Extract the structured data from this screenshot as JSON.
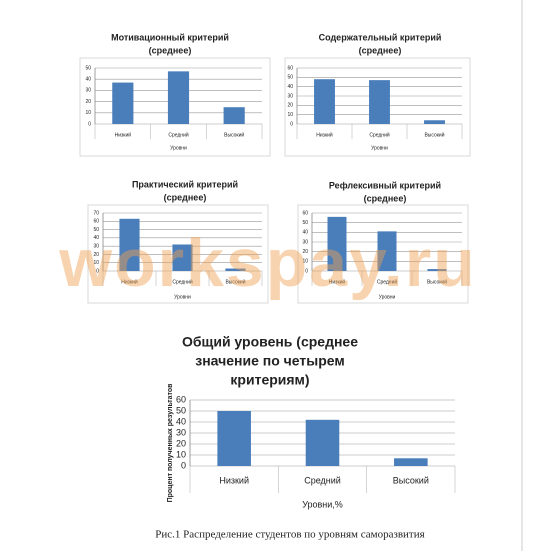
{
  "chart_data": [
    {
      "type": "bar",
      "title": [
        "Мотивационный критерий",
        "(среднее)"
      ],
      "categories": [
        "Низкий",
        "Средний",
        "Высокий"
      ],
      "values": [
        37,
        47,
        15
      ],
      "color": "#4a7ebb",
      "ylim": [
        0,
        50
      ],
      "yticks": [
        0,
        10,
        20,
        30,
        40,
        50
      ],
      "grid": true,
      "x_label": "Уровни"
    },
    {
      "type": "bar",
      "title": [
        "Содержательный критерий",
        "(среднее)"
      ],
      "categories": [
        "Низкий",
        "Средний",
        "Высокий"
      ],
      "values": [
        48,
        47,
        4
      ],
      "color": "#4a7ebb",
      "ylim": [
        0,
        60
      ],
      "yticks": [
        0,
        10,
        20,
        30,
        40,
        50,
        60
      ],
      "grid": true,
      "x_label": "Уровни"
    },
    {
      "type": "bar",
      "title": [
        "Практический критерий",
        "(среднее)"
      ],
      "categories": [
        "Низкий",
        "Средний",
        "Высокий"
      ],
      "values": [
        63,
        32,
        3
      ],
      "color": "#4a7ebb",
      "ylim": [
        0,
        70
      ],
      "yticks": [
        0,
        10,
        20,
        30,
        40,
        50,
        60,
        70
      ],
      "grid": true,
      "x_label": "Уровни"
    },
    {
      "type": "bar",
      "title": [
        "Рефлексивный критерий",
        "(среднее)"
      ],
      "categories": [
        "Низкий",
        "Средний",
        "Высокий"
      ],
      "values": [
        56,
        41,
        2
      ],
      "color": "#4a7ebb",
      "ylim": [
        0,
        60
      ],
      "yticks": [
        0,
        10,
        20,
        30,
        40,
        50,
        60
      ],
      "grid": true,
      "x_label": "Уровни"
    },
    {
      "type": "bar",
      "title": [
        "Общий уровень (среднее",
        "значение по четырем",
        "критериям)"
      ],
      "categories": [
        "Низкий",
        "Средний",
        "Высокий"
      ],
      "values": [
        50,
        42,
        7
      ],
      "color": "#4a7ebb",
      "ylim": [
        0,
        60
      ],
      "yticks": [
        0,
        10,
        20,
        30,
        40,
        50,
        60
      ],
      "grid": true,
      "x_label": "Уровни,%",
      "y_label": "Процент полученных результатов"
    }
  ],
  "watermark": "workspay.ru",
  "caption": "Рис.1 Распределение студентов по уровням саморазвития"
}
